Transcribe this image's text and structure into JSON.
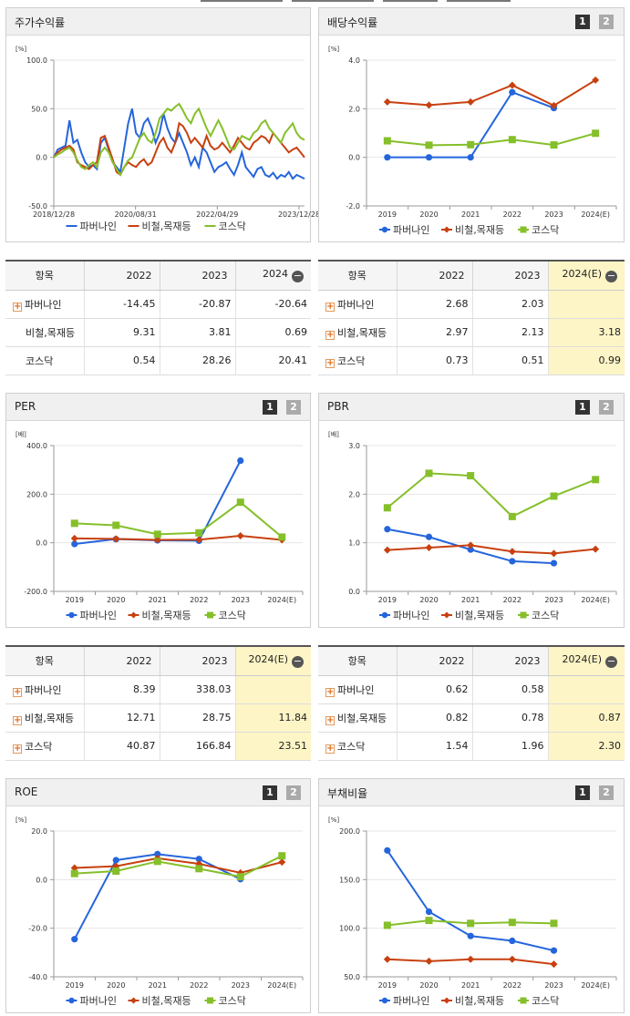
{
  "colors": {
    "paber": "#2565dc",
    "steel": "#c8400f",
    "kosdaq": "#85bf2a",
    "highlight": "#fdf5c6"
  },
  "series_names": [
    "파버나인",
    "비철,목재등",
    "코스닥"
  ],
  "pager": {
    "page1": "1",
    "page2": "2"
  },
  "charts": {
    "stock_return": {
      "title": "주가수익률",
      "chart_data": {
        "type": "line",
        "unit": "[%]",
        "y_ticks": [
          "100.0",
          "50.0",
          "0.0",
          "-50.0"
        ],
        "ylim": [
          -50,
          100
        ],
        "x_ticks": [
          "2018/12/28",
          "2020/08/31",
          "2022/04/29",
          "2023/12/28"
        ],
        "series": [
          {
            "name": "파버나인",
            "values": [
              0,
              8,
              10,
              12,
              38,
              15,
              18,
              5,
              -5,
              -10,
              -8,
              -12,
              15,
              20,
              8,
              -5,
              -10,
              -15,
              10,
              35,
              50,
              25,
              20,
              35,
              40,
              30,
              15,
              25,
              45,
              30,
              20,
              15,
              25,
              15,
              5,
              -8,
              0,
              -10,
              10,
              5,
              -5,
              -15,
              -10,
              -8,
              -5,
              -12,
              -18,
              -8,
              5,
              -10,
              -15,
              -20,
              -12,
              -10,
              -18,
              -20,
              -16,
              -22,
              -18,
              -20,
              -15,
              -22,
              -18,
              -20,
              -22
            ]
          },
          {
            "name": "비철,목재등",
            "values": [
              0,
              5,
              8,
              10,
              12,
              8,
              -5,
              -8,
              -10,
              -12,
              -8,
              -5,
              20,
              22,
              10,
              -2,
              -15,
              -18,
              -10,
              -5,
              -8,
              -10,
              -5,
              -2,
              -8,
              -5,
              5,
              15,
              20,
              10,
              5,
              15,
              35,
              32,
              25,
              15,
              20,
              15,
              10,
              22,
              12,
              8,
              10,
              15,
              10,
              5,
              12,
              20,
              15,
              10,
              8,
              15,
              18,
              22,
              20,
              15,
              25,
              20,
              15,
              10,
              5,
              8,
              10,
              5,
              0
            ]
          },
          {
            "name": "코스닥",
            "values": [
              0,
              3,
              5,
              8,
              10,
              5,
              -3,
              -10,
              -12,
              -8,
              -5,
              -10,
              5,
              10,
              5,
              -5,
              -12,
              -18,
              -10,
              -3,
              0,
              10,
              20,
              25,
              18,
              15,
              25,
              40,
              45,
              50,
              48,
              52,
              55,
              48,
              40,
              35,
              45,
              50,
              40,
              30,
              22,
              30,
              38,
              30,
              20,
              10,
              8,
              15,
              22,
              20,
              18,
              25,
              28,
              35,
              38,
              30,
              25,
              20,
              15,
              25,
              30,
              35,
              25,
              20,
              18
            ]
          }
        ]
      }
    },
    "dividend": {
      "title": "배당수익률",
      "chart_data": {
        "type": "line",
        "unit": "[%]",
        "y_ticks": [
          "4.0",
          "2.0",
          "0.0",
          "-2.0"
        ],
        "ylim": [
          -2,
          4
        ],
        "categories": [
          "2019",
          "2020",
          "2021",
          "2022",
          "2023",
          "2024(E)"
        ],
        "series": [
          {
            "name": "파버나인",
            "values": [
              0.0,
              0.0,
              0.0,
              2.68,
              2.03,
              null
            ]
          },
          {
            "name": "비철,목재등",
            "values": [
              2.28,
              2.15,
              2.28,
              2.97,
              2.13,
              3.18
            ]
          },
          {
            "name": "코스닥",
            "values": [
              0.68,
              0.5,
              0.52,
              0.73,
              0.51,
              0.99
            ]
          }
        ]
      }
    },
    "per": {
      "title": "PER",
      "chart_data": {
        "type": "line",
        "unit": "[배]",
        "y_ticks": [
          "400.0",
          "200.0",
          "0.0",
          "-200.0"
        ],
        "ylim": [
          -200,
          400
        ],
        "categories": [
          "2019",
          "2020",
          "2021",
          "2022",
          "2023",
          "2024(E)"
        ],
        "series": [
          {
            "name": "파버나인",
            "values": [
              -5,
              15,
              10,
              8.39,
              338.03,
              null
            ]
          },
          {
            "name": "비철,목재등",
            "values": [
              18,
              16,
              12,
              12.71,
              28.75,
              11.84
            ]
          },
          {
            "name": "코스닥",
            "values": [
              80,
              72,
              35,
              40.87,
              166.84,
              23.51
            ]
          }
        ]
      }
    },
    "pbr": {
      "title": "PBR",
      "chart_data": {
        "type": "line",
        "unit": "[배]",
        "y_ticks": [
          "3.0",
          "2.0",
          "1.0",
          "0.0"
        ],
        "ylim": [
          0,
          3
        ],
        "categories": [
          "2019",
          "2020",
          "2021",
          "2022",
          "2023",
          "2024(E)"
        ],
        "series": [
          {
            "name": "파버나인",
            "values": [
              1.28,
              1.12,
              0.86,
              0.62,
              0.58,
              null
            ]
          },
          {
            "name": "비철,목재등",
            "values": [
              0.85,
              0.9,
              0.95,
              0.82,
              0.78,
              0.87
            ]
          },
          {
            "name": "코스닥",
            "values": [
              1.72,
              2.43,
              2.38,
              1.54,
              1.96,
              2.3
            ]
          }
        ]
      }
    },
    "roe": {
      "title": "ROE",
      "chart_data": {
        "type": "line",
        "unit": "[%]",
        "y_ticks": [
          "20.0",
          "0.0",
          "-20.0",
          "-40.0"
        ],
        "ylim": [
          -40,
          20
        ],
        "categories": [
          "2019",
          "2020",
          "2021",
          "2022",
          "2023",
          "2024(E)"
        ],
        "series": [
          {
            "name": "파버나인",
            "values": [
              -24.5,
              8.0,
              10.5,
              8.5,
              0.2,
              null
            ]
          },
          {
            "name": "비철,목재등",
            "values": [
              4.8,
              5.5,
              8.8,
              6.5,
              2.8,
              7.2
            ]
          },
          {
            "name": "코스닥",
            "values": [
              2.5,
              3.5,
              7.5,
              4.5,
              1.2,
              9.8
            ]
          }
        ]
      }
    },
    "debt": {
      "title": "부채비율",
      "chart_data": {
        "type": "line",
        "unit": "[%]",
        "y_ticks": [
          "200.0",
          "150.0",
          "100.0",
          "50.0"
        ],
        "ylim": [
          50,
          200
        ],
        "categories": [
          "2019",
          "2020",
          "2021",
          "2022",
          "2023",
          "2024(E)"
        ],
        "series": [
          {
            "name": "파버나인",
            "values": [
              180,
              117,
              92,
              87,
              77,
              null
            ]
          },
          {
            "name": "비철,목재등",
            "values": [
              68,
              66,
              68,
              68,
              63,
              null
            ]
          },
          {
            "name": "코스닥",
            "values": [
              103,
              108,
              105,
              106,
              105,
              null
            ]
          }
        ]
      }
    }
  },
  "tables": {
    "stock_return": {
      "header": [
        "항목",
        "2022",
        "2023",
        "2024"
      ],
      "rows": [
        {
          "name": "파버나인",
          "plus": true,
          "values": [
            "-14.45",
            "-20.87",
            "-20.64"
          ]
        },
        {
          "name": "비철,목재등",
          "plus": false,
          "values": [
            "9.31",
            "3.81",
            "0.69"
          ]
        },
        {
          "name": "코스닥",
          "plus": false,
          "values": [
            "0.54",
            "28.26",
            "20.41"
          ]
        }
      ]
    },
    "dividend": {
      "header": [
        "항목",
        "2022",
        "2023",
        "2024(E)"
      ],
      "rows": [
        {
          "name": "파버나인",
          "plus": true,
          "values": [
            "2.68",
            "2.03",
            ""
          ]
        },
        {
          "name": "비철,목재등",
          "plus": true,
          "values": [
            "2.97",
            "2.13",
            "3.18"
          ]
        },
        {
          "name": "코스닥",
          "plus": true,
          "values": [
            "0.73",
            "0.51",
            "0.99"
          ]
        }
      ]
    },
    "per": {
      "header": [
        "항목",
        "2022",
        "2023",
        "2024(E)"
      ],
      "rows": [
        {
          "name": "파버나인",
          "plus": true,
          "values": [
            "8.39",
            "338.03",
            ""
          ]
        },
        {
          "name": "비철,목재등",
          "plus": true,
          "values": [
            "12.71",
            "28.75",
            "11.84"
          ]
        },
        {
          "name": "코스닥",
          "plus": true,
          "values": [
            "40.87",
            "166.84",
            "23.51"
          ]
        }
      ]
    },
    "pbr": {
      "header": [
        "항목",
        "2022",
        "2023",
        "2024(E)"
      ],
      "rows": [
        {
          "name": "파버나인",
          "plus": true,
          "values": [
            "0.62",
            "0.58",
            ""
          ]
        },
        {
          "name": "비철,목재등",
          "plus": true,
          "values": [
            "0.82",
            "0.78",
            "0.87"
          ]
        },
        {
          "name": "코스닥",
          "plus": true,
          "values": [
            "1.54",
            "1.96",
            "2.30"
          ]
        }
      ]
    }
  },
  "minus_glyph": "−",
  "plus_glyph": "+"
}
